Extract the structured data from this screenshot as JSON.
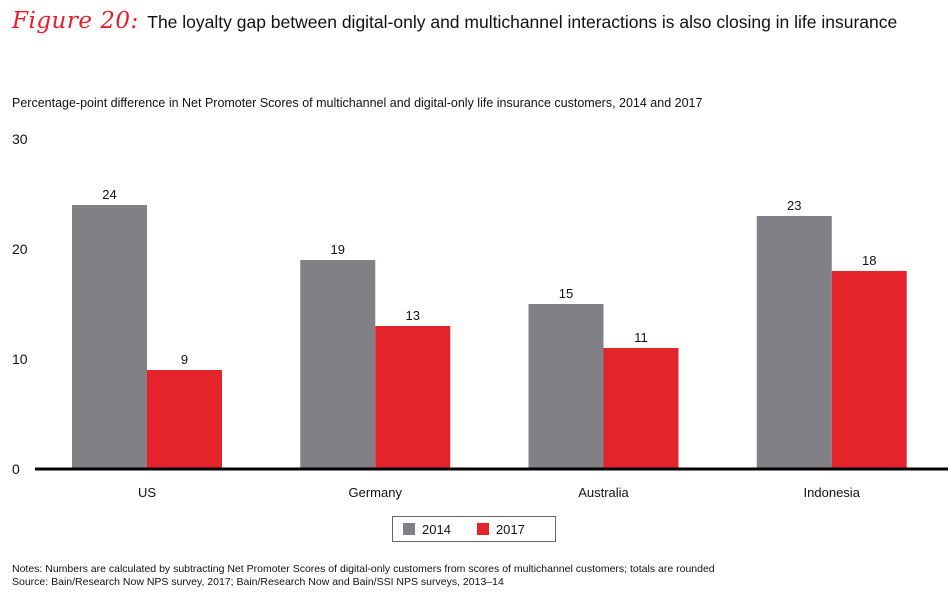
{
  "header": {
    "figure_label": "Figure 20:",
    "title": "The loyalty gap between digital-only and multichannel interactions is also closing in life insurance"
  },
  "subtitle": "Percentage-point difference in Net Promoter Scores of multichannel and digital-only life insurance customers, 2014 and 2017",
  "chart_data": {
    "type": "bar",
    "categories": [
      "US",
      "Germany",
      "Australia",
      "Indonesia"
    ],
    "series": [
      {
        "name": "2014",
        "values": [
          24,
          19,
          15,
          23
        ],
        "color": "#808085"
      },
      {
        "name": "2017",
        "values": [
          9,
          13,
          11,
          18
        ],
        "color": "#e3242b"
      }
    ],
    "data_labels": [
      [
        "24",
        "19",
        "15",
        "23"
      ],
      [
        "9",
        "13",
        "11",
        "18"
      ]
    ],
    "ylim": [
      0,
      30
    ],
    "yticks": [
      "0",
      "10",
      "20",
      "30"
    ],
    "grid": false,
    "legend_position": "bottom-center"
  },
  "legend": {
    "items": [
      "2014",
      "2017"
    ]
  },
  "notes": {
    "line1": "Notes: Numbers are calculated by subtracting Net Promoter Scores of digital-only customers from scores of multichannel customers; totals are rounded",
    "line2": "Source: Bain/Research Now NPS survey, 2017; Bain/Research Now and Bain/SSI NPS surveys, 2013–14"
  }
}
